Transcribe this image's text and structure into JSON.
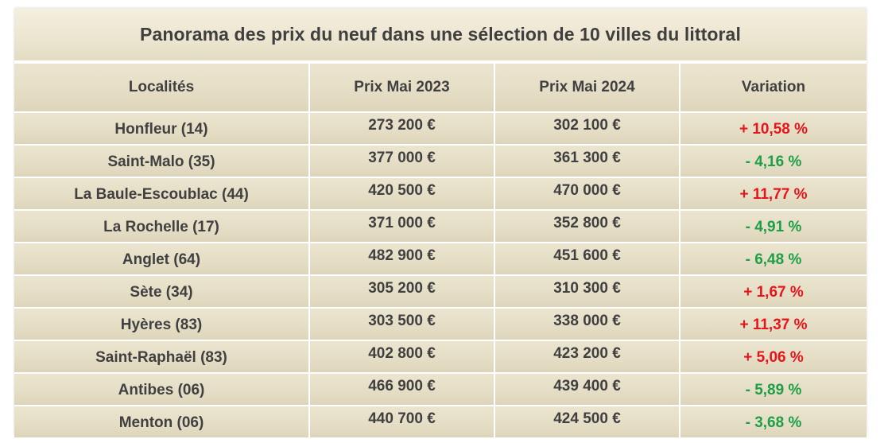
{
  "title": "Panorama des prix du neuf dans une sélection de 10 villes du littoral",
  "columns": [
    "Localités",
    "Prix Mai 2023",
    "Prix Mai 2024",
    "Variation"
  ],
  "rows": [
    {
      "city": "Honfleur (14)",
      "p2023": "273 200 €",
      "p2024": "302 100 €",
      "variation": "+ 10,58 %",
      "trend": "up"
    },
    {
      "city": "Saint-Malo (35)",
      "p2023": "377 000 €",
      "p2024": "361 300 €",
      "variation": "- 4,16 %",
      "trend": "down"
    },
    {
      "city": "La Baule-Escoublac (44)",
      "p2023": "420 500 €",
      "p2024": "470 000 €",
      "variation": "+ 11,77 %",
      "trend": "up"
    },
    {
      "city": "La Rochelle (17)",
      "p2023": "371 000 €",
      "p2024": "352 800 €",
      "variation": "- 4,91 %",
      "trend": "down"
    },
    {
      "city": "Anglet  (64)",
      "p2023": "482 900 €",
      "p2024": "451 600 €",
      "variation": "- 6,48 %",
      "trend": "down"
    },
    {
      "city": "Sète (34)",
      "p2023": "305 200 €",
      "p2024": "310 300 €",
      "variation": "+ 1,67 %",
      "trend": "up"
    },
    {
      "city": "Hyères (83)",
      "p2023": "303 500 €",
      "p2024": "338 000 €",
      "variation": "+ 11,37 %",
      "trend": "up"
    },
    {
      "city": "Saint-Raphaël (83)",
      "p2023": "402 800 €",
      "p2024": "423 200 €",
      "variation": "+ 5,06 %",
      "trend": "up"
    },
    {
      "city": "Antibes (06)",
      "p2023": "466 900 €",
      "p2024": "439 400 €",
      "variation": "- 5,89 %",
      "trend": "down"
    },
    {
      "city": "Menton (06)",
      "p2023": "440 700 €",
      "p2024": "424 500 €",
      "variation": "- 3,68 %",
      "trend": "down"
    }
  ],
  "colors": {
    "up": "#e8141b",
    "down": "#1e9e46",
    "header_bg": "#ebe4cf"
  }
}
